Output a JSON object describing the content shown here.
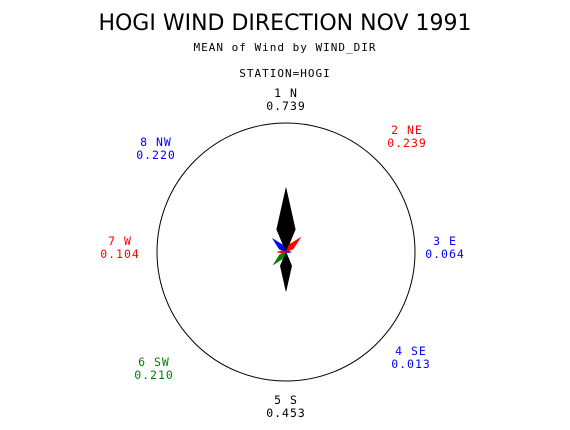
{
  "chart_data": {
    "type": "polar-rose",
    "title": "HOGI WIND DIRECTION NOV 1991",
    "subtitle": "MEAN of Wind by WIND_DIR",
    "station": "STATION=HOGI",
    "directions": [
      {
        "dir": "1 N",
        "value": 0.739,
        "value_text": "0.739",
        "color": "#000000"
      },
      {
        "dir": "2 NE",
        "value": 0.239,
        "value_text": "0.239",
        "color": "#ff0000"
      },
      {
        "dir": "3 E",
        "value": 0.064,
        "value_text": "0.064",
        "color": "#0000ff"
      },
      {
        "dir": "4 SE",
        "value": 0.013,
        "value_text": "0.013",
        "color": "#0000ff"
      },
      {
        "dir": "5 S",
        "value": 0.453,
        "value_text": "0.453",
        "color": "#000000"
      },
      {
        "dir": "6 SW",
        "value": 0.21,
        "value_text": "0.210",
        "color": "#008000"
      },
      {
        "dir": "7 W",
        "value": 0.104,
        "value_text": "0.104",
        "color": "#ff0000"
      },
      {
        "dir": "8 NW",
        "value": 0.22,
        "value_text": "0.220",
        "color": "#0000ff"
      }
    ]
  }
}
